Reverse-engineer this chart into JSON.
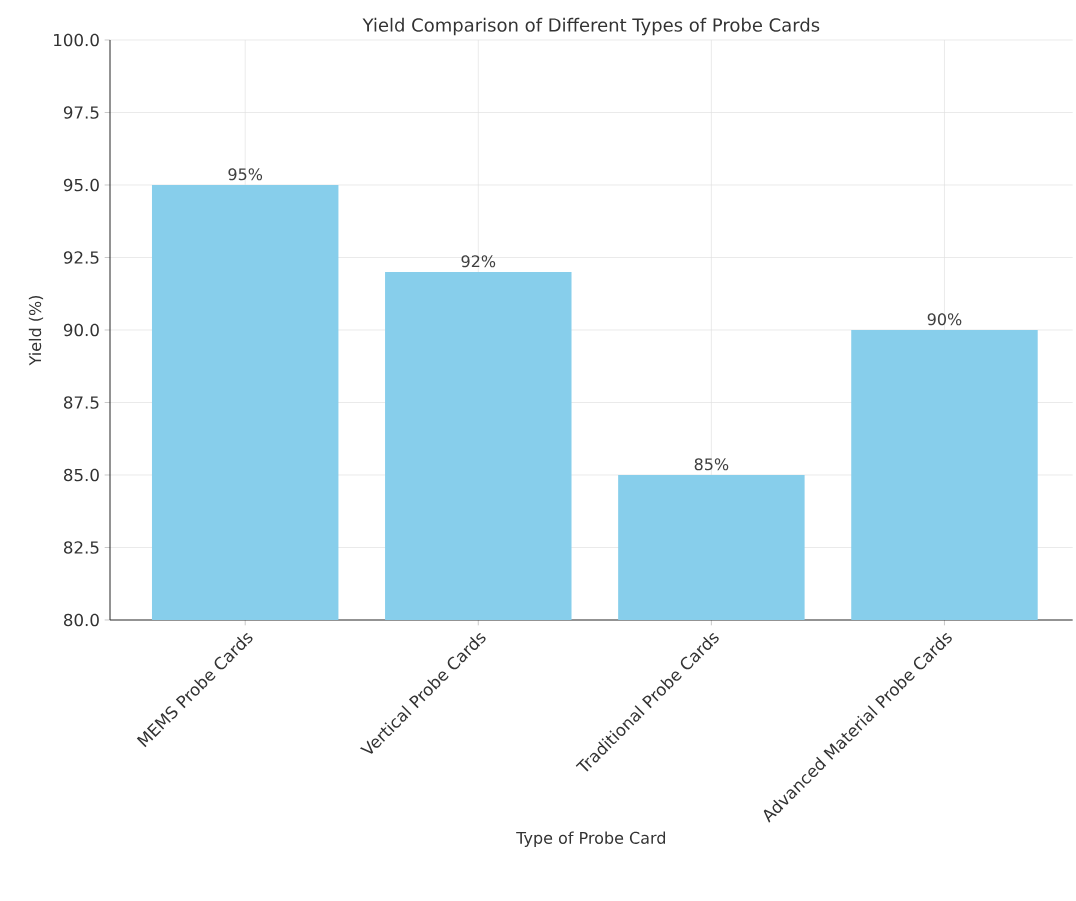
{
  "chart_data": {
    "type": "bar",
    "title": "Yield Comparison of Different Types of Probe Cards",
    "xlabel": "Type of Probe Card",
    "ylabel": "Yield (%)",
    "categories": [
      "MEMS Probe Cards",
      "Vertical Probe Cards",
      "Traditional Probe Cards",
      "Advanced Material Probe Cards"
    ],
    "values": [
      95,
      92,
      85,
      90
    ],
    "value_labels": [
      "95%",
      "92%",
      "85%",
      "90%"
    ],
    "color": "#87ceeb",
    "ylim": [
      80,
      100
    ],
    "yticks": [
      {
        "value": 80,
        "label": "80.0"
      },
      {
        "value": 82.5,
        "label": "82.5"
      },
      {
        "value": 85,
        "label": "85.0"
      },
      {
        "value": 87.5,
        "label": "87.5"
      },
      {
        "value": 90,
        "label": "90.0"
      },
      {
        "value": 92.5,
        "label": "92.5"
      },
      {
        "value": 95,
        "label": "95.0"
      },
      {
        "value": 97.5,
        "label": "97.5"
      },
      {
        "value": 100,
        "label": "100.0"
      }
    ],
    "grid": true
  }
}
